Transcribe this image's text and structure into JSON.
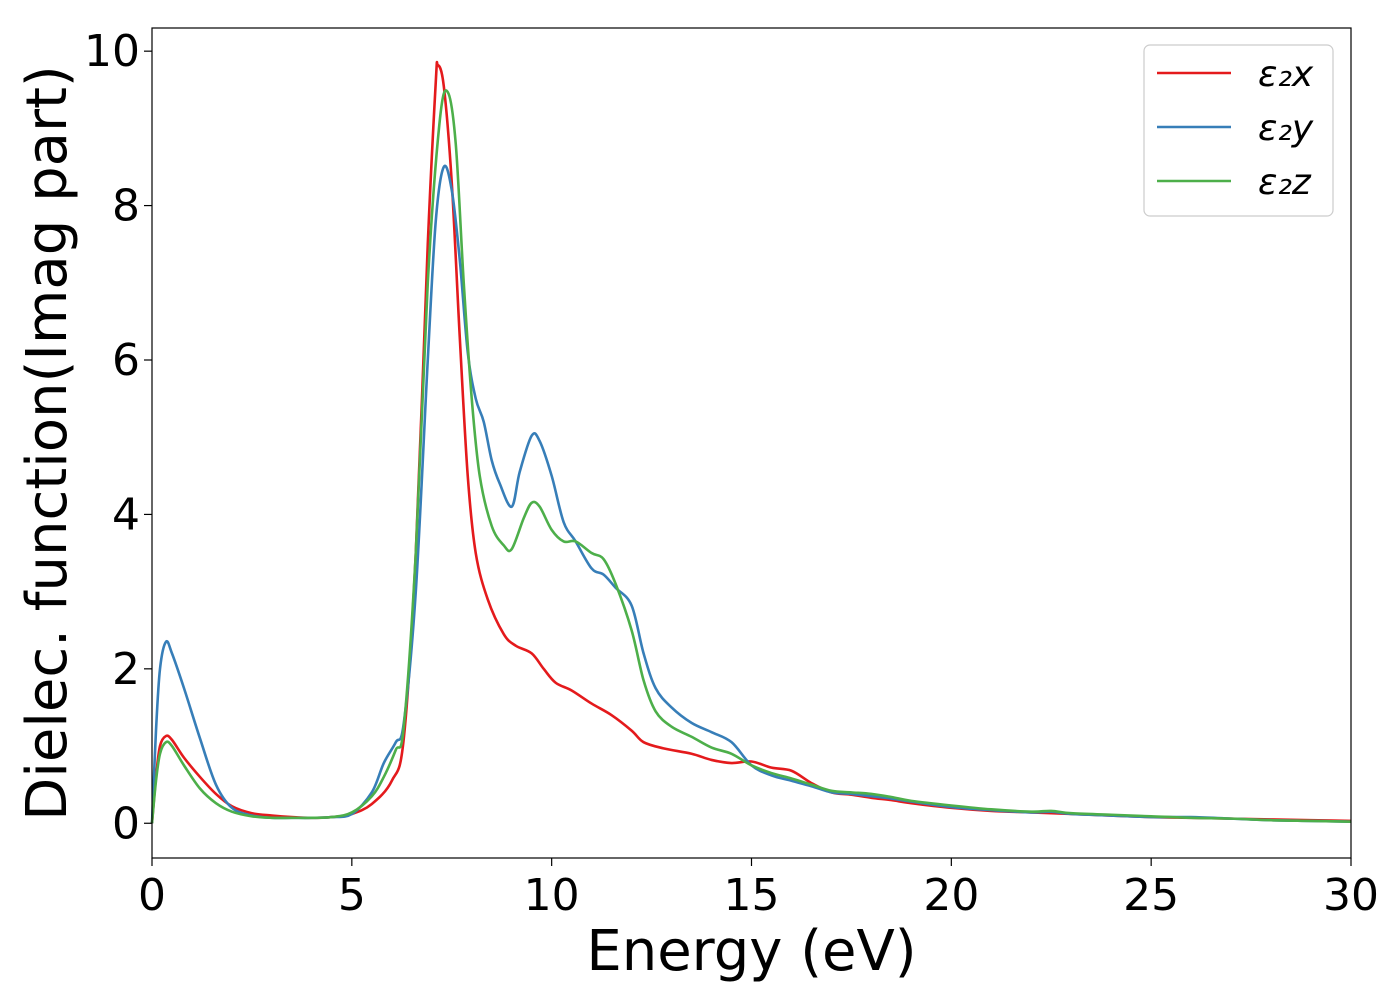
{
  "chart_data": {
    "type": "line",
    "xlabel": "Energy (eV)",
    "ylabel": "Dielec. function(Imag part)",
    "xlim": [
      0,
      30
    ],
    "ylim": [
      -0.45,
      10.3
    ],
    "xticks": [
      0,
      5,
      10,
      15,
      20,
      25,
      30
    ],
    "yticks": [
      0,
      2,
      4,
      6,
      8,
      10
    ],
    "grid": false,
    "legend_position": "top-right",
    "series": [
      {
        "name": "ε₂x",
        "color": "#e41a1c",
        "points": [
          [
            0,
            0
          ],
          [
            0.1,
            0.6
          ],
          [
            0.2,
            1.0
          ],
          [
            0.35,
            1.13
          ],
          [
            0.5,
            1.08
          ],
          [
            0.8,
            0.85
          ],
          [
            1.2,
            0.6
          ],
          [
            1.6,
            0.38
          ],
          [
            2.0,
            0.22
          ],
          [
            2.5,
            0.13
          ],
          [
            3.0,
            0.1
          ],
          [
            3.5,
            0.08
          ],
          [
            4.0,
            0.07
          ],
          [
            4.5,
            0.08
          ],
          [
            5.0,
            0.12
          ],
          [
            5.5,
            0.25
          ],
          [
            6.0,
            0.55
          ],
          [
            6.3,
            1.1
          ],
          [
            6.6,
            3.5
          ],
          [
            6.9,
            7.5
          ],
          [
            7.1,
            9.6
          ],
          [
            7.15,
            9.82
          ],
          [
            7.3,
            9.55
          ],
          [
            7.5,
            8.3
          ],
          [
            7.7,
            6.3
          ],
          [
            7.9,
            4.5
          ],
          [
            8.1,
            3.5
          ],
          [
            8.4,
            2.9
          ],
          [
            8.8,
            2.45
          ],
          [
            9.1,
            2.3
          ],
          [
            9.5,
            2.2
          ],
          [
            9.8,
            2.0
          ],
          [
            10.1,
            1.82
          ],
          [
            10.5,
            1.72
          ],
          [
            11.0,
            1.55
          ],
          [
            11.5,
            1.4
          ],
          [
            12.0,
            1.2
          ],
          [
            12.3,
            1.05
          ],
          [
            12.8,
            0.97
          ],
          [
            13.5,
            0.9
          ],
          [
            14.0,
            0.82
          ],
          [
            14.5,
            0.78
          ],
          [
            15.0,
            0.8
          ],
          [
            15.5,
            0.72
          ],
          [
            16.0,
            0.68
          ],
          [
            16.5,
            0.52
          ],
          [
            17.0,
            0.4
          ],
          [
            17.5,
            0.37
          ],
          [
            18.0,
            0.33
          ],
          [
            18.5,
            0.3
          ],
          [
            19.0,
            0.26
          ],
          [
            20.0,
            0.2
          ],
          [
            21.0,
            0.16
          ],
          [
            22.0,
            0.14
          ],
          [
            23.0,
            0.12
          ],
          [
            24.0,
            0.1
          ],
          [
            25.0,
            0.08
          ],
          [
            26.0,
            0.07
          ],
          [
            27.0,
            0.06
          ],
          [
            28.0,
            0.05
          ],
          [
            29.0,
            0.04
          ],
          [
            30.0,
            0.03
          ]
        ]
      },
      {
        "name": "ε₂y",
        "color": "#377eb8",
        "points": [
          [
            0,
            0
          ],
          [
            0.1,
            1.2
          ],
          [
            0.2,
            2.0
          ],
          [
            0.35,
            2.35
          ],
          [
            0.5,
            2.2
          ],
          [
            0.8,
            1.75
          ],
          [
            1.2,
            1.1
          ],
          [
            1.6,
            0.5
          ],
          [
            2.0,
            0.2
          ],
          [
            2.5,
            0.1
          ],
          [
            3.0,
            0.07
          ],
          [
            3.5,
            0.07
          ],
          [
            4.0,
            0.07
          ],
          [
            4.5,
            0.08
          ],
          [
            5.0,
            0.12
          ],
          [
            5.5,
            0.4
          ],
          [
            5.8,
            0.78
          ],
          [
            6.1,
            1.05
          ],
          [
            6.3,
            1.3
          ],
          [
            6.6,
            3.0
          ],
          [
            6.9,
            6.0
          ],
          [
            7.1,
            7.8
          ],
          [
            7.3,
            8.5
          ],
          [
            7.5,
            8.2
          ],
          [
            7.7,
            7.3
          ],
          [
            7.9,
            6.1
          ],
          [
            8.1,
            5.5
          ],
          [
            8.3,
            5.2
          ],
          [
            8.5,
            4.7
          ],
          [
            8.7,
            4.4
          ],
          [
            9.0,
            4.1
          ],
          [
            9.2,
            4.55
          ],
          [
            9.5,
            5.02
          ],
          [
            9.7,
            4.95
          ],
          [
            10.0,
            4.5
          ],
          [
            10.3,
            3.9
          ],
          [
            10.6,
            3.65
          ],
          [
            11.0,
            3.3
          ],
          [
            11.3,
            3.22
          ],
          [
            11.6,
            3.05
          ],
          [
            12.0,
            2.82
          ],
          [
            12.3,
            2.2
          ],
          [
            12.6,
            1.75
          ],
          [
            13.0,
            1.5
          ],
          [
            13.5,
            1.3
          ],
          [
            14.0,
            1.18
          ],
          [
            14.5,
            1.05
          ],
          [
            15.0,
            0.75
          ],
          [
            15.5,
            0.62
          ],
          [
            16.0,
            0.55
          ],
          [
            16.5,
            0.48
          ],
          [
            17.0,
            0.4
          ],
          [
            17.5,
            0.38
          ],
          [
            18.0,
            0.35
          ],
          [
            18.5,
            0.32
          ],
          [
            19.0,
            0.28
          ],
          [
            20.0,
            0.21
          ],
          [
            21.0,
            0.17
          ],
          [
            22.0,
            0.14
          ],
          [
            22.5,
            0.15
          ],
          [
            23.0,
            0.12
          ],
          [
            24.0,
            0.1
          ],
          [
            25.0,
            0.08
          ],
          [
            26.0,
            0.08
          ],
          [
            27.0,
            0.06
          ],
          [
            28.0,
            0.04
          ],
          [
            29.0,
            0.03
          ],
          [
            30.0,
            0.02
          ]
        ]
      },
      {
        "name": "ε₂z",
        "color": "#4daf4a",
        "points": [
          [
            0,
            0
          ],
          [
            0.1,
            0.55
          ],
          [
            0.2,
            0.9
          ],
          [
            0.35,
            1.05
          ],
          [
            0.5,
            1.0
          ],
          [
            0.8,
            0.75
          ],
          [
            1.2,
            0.45
          ],
          [
            1.6,
            0.26
          ],
          [
            2.0,
            0.15
          ],
          [
            2.5,
            0.09
          ],
          [
            3.0,
            0.07
          ],
          [
            3.5,
            0.07
          ],
          [
            4.0,
            0.07
          ],
          [
            4.5,
            0.08
          ],
          [
            5.0,
            0.14
          ],
          [
            5.5,
            0.35
          ],
          [
            5.8,
            0.6
          ],
          [
            6.1,
            0.95
          ],
          [
            6.3,
            1.25
          ],
          [
            6.6,
            3.5
          ],
          [
            6.9,
            7.0
          ],
          [
            7.2,
            9.1
          ],
          [
            7.4,
            9.47
          ],
          [
            7.6,
            8.8
          ],
          [
            7.8,
            7.0
          ],
          [
            8.0,
            5.5
          ],
          [
            8.2,
            4.5
          ],
          [
            8.5,
            3.85
          ],
          [
            8.8,
            3.6
          ],
          [
            9.0,
            3.55
          ],
          [
            9.3,
            3.95
          ],
          [
            9.5,
            4.15
          ],
          [
            9.7,
            4.1
          ],
          [
            10.0,
            3.8
          ],
          [
            10.3,
            3.65
          ],
          [
            10.6,
            3.65
          ],
          [
            11.0,
            3.5
          ],
          [
            11.3,
            3.42
          ],
          [
            11.6,
            3.1
          ],
          [
            12.0,
            2.5
          ],
          [
            12.3,
            1.85
          ],
          [
            12.6,
            1.45
          ],
          [
            13.0,
            1.25
          ],
          [
            13.5,
            1.12
          ],
          [
            14.0,
            0.98
          ],
          [
            14.5,
            0.9
          ],
          [
            15.0,
            0.75
          ],
          [
            15.5,
            0.65
          ],
          [
            16.0,
            0.58
          ],
          [
            16.5,
            0.5
          ],
          [
            17.0,
            0.42
          ],
          [
            17.5,
            0.4
          ],
          [
            18.0,
            0.38
          ],
          [
            18.5,
            0.34
          ],
          [
            19.0,
            0.29
          ],
          [
            20.0,
            0.23
          ],
          [
            21.0,
            0.18
          ],
          [
            22.0,
            0.15
          ],
          [
            22.5,
            0.16
          ],
          [
            23.0,
            0.13
          ],
          [
            24.0,
            0.11
          ],
          [
            25.0,
            0.09
          ],
          [
            26.0,
            0.07
          ],
          [
            27.0,
            0.06
          ],
          [
            28.0,
            0.04
          ],
          [
            29.0,
            0.03
          ],
          [
            30.0,
            0.02
          ]
        ]
      }
    ]
  }
}
